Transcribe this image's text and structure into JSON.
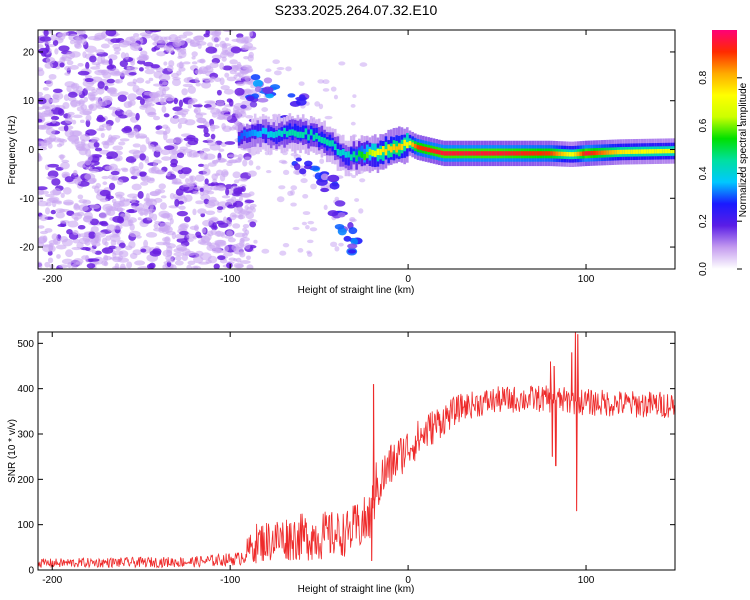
{
  "title": "S233.2025.264.07.32.E10",
  "colors": {
    "snr_line": "#ee2a2a",
    "scatter_light": "#c9a6f2",
    "scatter_dark": "#6a1ee0",
    "axis": "#000000"
  },
  "chart_data": [
    {
      "type": "heatmap",
      "name": "spectrogram",
      "xlabel": "Height of straight line (km)",
      "ylabel": "Frequency (Hz)",
      "xlim": [
        -208,
        150
      ],
      "ylim": [
        -24.5,
        24.5
      ],
      "xticks": [
        -200,
        -100,
        0,
        100
      ],
      "yticks": [
        -20,
        -10,
        0,
        10,
        20
      ],
      "xtick_labels": [
        "-200",
        "-100",
        "0",
        "100"
      ],
      "ytick_labels": [
        "-20",
        "-10",
        "0",
        "10",
        "20"
      ],
      "colorbar": {
        "label": "Normalized spectral amplitude",
        "range": [
          0,
          1
        ],
        "ticks": [
          0.0,
          0.2,
          0.4,
          0.6,
          0.8
        ],
        "tick_labels": [
          "0.0",
          "0.2",
          "0.4",
          "0.6",
          "0.8"
        ],
        "colormap": [
          "#ffffff",
          "#c49bef",
          "#5a1de6",
          "#1a1aff",
          "#00c8ff",
          "#00e0a0",
          "#00e000",
          "#ccff00",
          "#ffff00",
          "#ffaa00",
          "#ff2a00",
          "#ff0077"
        ]
      },
      "noise_region": {
        "x_range": [
          -208,
          -95
        ],
        "freq_range": [
          -24.5,
          24.5
        ],
        "amplitude": "low (0.0-0.15)"
      },
      "signal_track": [
        {
          "x": -95,
          "freq": 2.5,
          "amp": 0.3
        },
        {
          "x": -85,
          "freq": 3.5,
          "amp": 0.35
        },
        {
          "x": -75,
          "freq": 3.0,
          "amp": 0.4
        },
        {
          "x": -65,
          "freq": 3.5,
          "amp": 0.45
        },
        {
          "x": -55,
          "freq": 3.0,
          "amp": 0.45
        },
        {
          "x": -45,
          "freq": 1.5,
          "amp": 0.45
        },
        {
          "x": -35,
          "freq": -1.5,
          "amp": 0.4
        },
        {
          "x": -25,
          "freq": -1.0,
          "amp": 0.55
        },
        {
          "x": -15,
          "freq": -0.5,
          "amp": 0.75
        },
        {
          "x": -5,
          "freq": 0.5,
          "amp": 0.8
        },
        {
          "x": 0,
          "freq": 1.5,
          "amp": 0.7
        },
        {
          "x": 5,
          "freq": 0.5,
          "amp": 0.9
        },
        {
          "x": 20,
          "freq": -0.8,
          "amp": 0.95
        },
        {
          "x": 50,
          "freq": -0.8,
          "amp": 0.95
        },
        {
          "x": 80,
          "freq": -0.8,
          "amp": 0.9
        },
        {
          "x": 92,
          "freq": -1.0,
          "amp": 0.7
        },
        {
          "x": 100,
          "freq": -0.8,
          "amp": 0.95
        },
        {
          "x": 120,
          "freq": -0.5,
          "amp": 0.75
        },
        {
          "x": 150,
          "freq": -0.3,
          "amp": 0.7
        }
      ],
      "secondary_branches": [
        {
          "x": -78,
          "freq": 11.5
        },
        {
          "x": -70,
          "freq": 7.0
        },
        {
          "x": -62,
          "freq": 10.0
        },
        {
          "x": -55,
          "freq": 5.0
        },
        {
          "x": -50,
          "freq": -5.0
        },
        {
          "x": -45,
          "freq": -7.0
        },
        {
          "x": -40,
          "freq": -12.5
        },
        {
          "x": -35,
          "freq": -17.0
        },
        {
          "x": -30,
          "freq": -20.0
        },
        {
          "x": -90,
          "freq": 10.0
        },
        {
          "x": -82,
          "freq": 13.5
        },
        {
          "x": -60,
          "freq": -3.5
        }
      ]
    },
    {
      "type": "line",
      "name": "snr",
      "xlabel": "Height of straight line (km)",
      "ylabel": "SNR (10 * v/v)",
      "xlim": [
        -208,
        150
      ],
      "ylim": [
        0,
        525
      ],
      "xticks": [
        -200,
        -100,
        0,
        100
      ],
      "yticks": [
        0,
        100,
        200,
        300,
        400,
        500
      ],
      "xtick_labels": [
        "-200",
        "-100",
        "0",
        "100"
      ],
      "ytick_labels": [
        "0",
        "100",
        "200",
        "300",
        "400",
        "500"
      ],
      "envelope": [
        {
          "x": -208,
          "mean": 15,
          "noise": 10
        },
        {
          "x": -120,
          "mean": 18,
          "noise": 12
        },
        {
          "x": -95,
          "mean": 25,
          "noise": 15
        },
        {
          "x": -85,
          "mean": 60,
          "noise": 45
        },
        {
          "x": -70,
          "mean": 70,
          "noise": 50
        },
        {
          "x": -50,
          "mean": 75,
          "noise": 55
        },
        {
          "x": -35,
          "mean": 80,
          "noise": 50
        },
        {
          "x": -22,
          "mean": 110,
          "noise": 60
        },
        {
          "x": -18,
          "mean": 180,
          "noise": 60
        },
        {
          "x": -10,
          "mean": 230,
          "noise": 50
        },
        {
          "x": 0,
          "mean": 270,
          "noise": 45
        },
        {
          "x": 15,
          "mean": 320,
          "noise": 40
        },
        {
          "x": 30,
          "mean": 360,
          "noise": 30
        },
        {
          "x": 50,
          "mean": 375,
          "noise": 30
        },
        {
          "x": 75,
          "mean": 378,
          "noise": 30
        },
        {
          "x": 100,
          "mean": 370,
          "noise": 30
        },
        {
          "x": 130,
          "mean": 365,
          "noise": 30
        },
        {
          "x": 150,
          "mean": 365,
          "noise": 30
        }
      ],
      "spikes": [
        {
          "x": -19.5,
          "y": 410
        },
        {
          "x": -20.5,
          "y": 20
        },
        {
          "x": 80,
          "y": 460
        },
        {
          "x": 81,
          "y": 250
        },
        {
          "x": 82,
          "y": 450
        },
        {
          "x": 83,
          "y": 230
        },
        {
          "x": 94,
          "y": 525
        },
        {
          "x": 94.7,
          "y": 130
        },
        {
          "x": 95.3,
          "y": 520
        },
        {
          "x": 92,
          "y": 480
        }
      ]
    }
  ]
}
